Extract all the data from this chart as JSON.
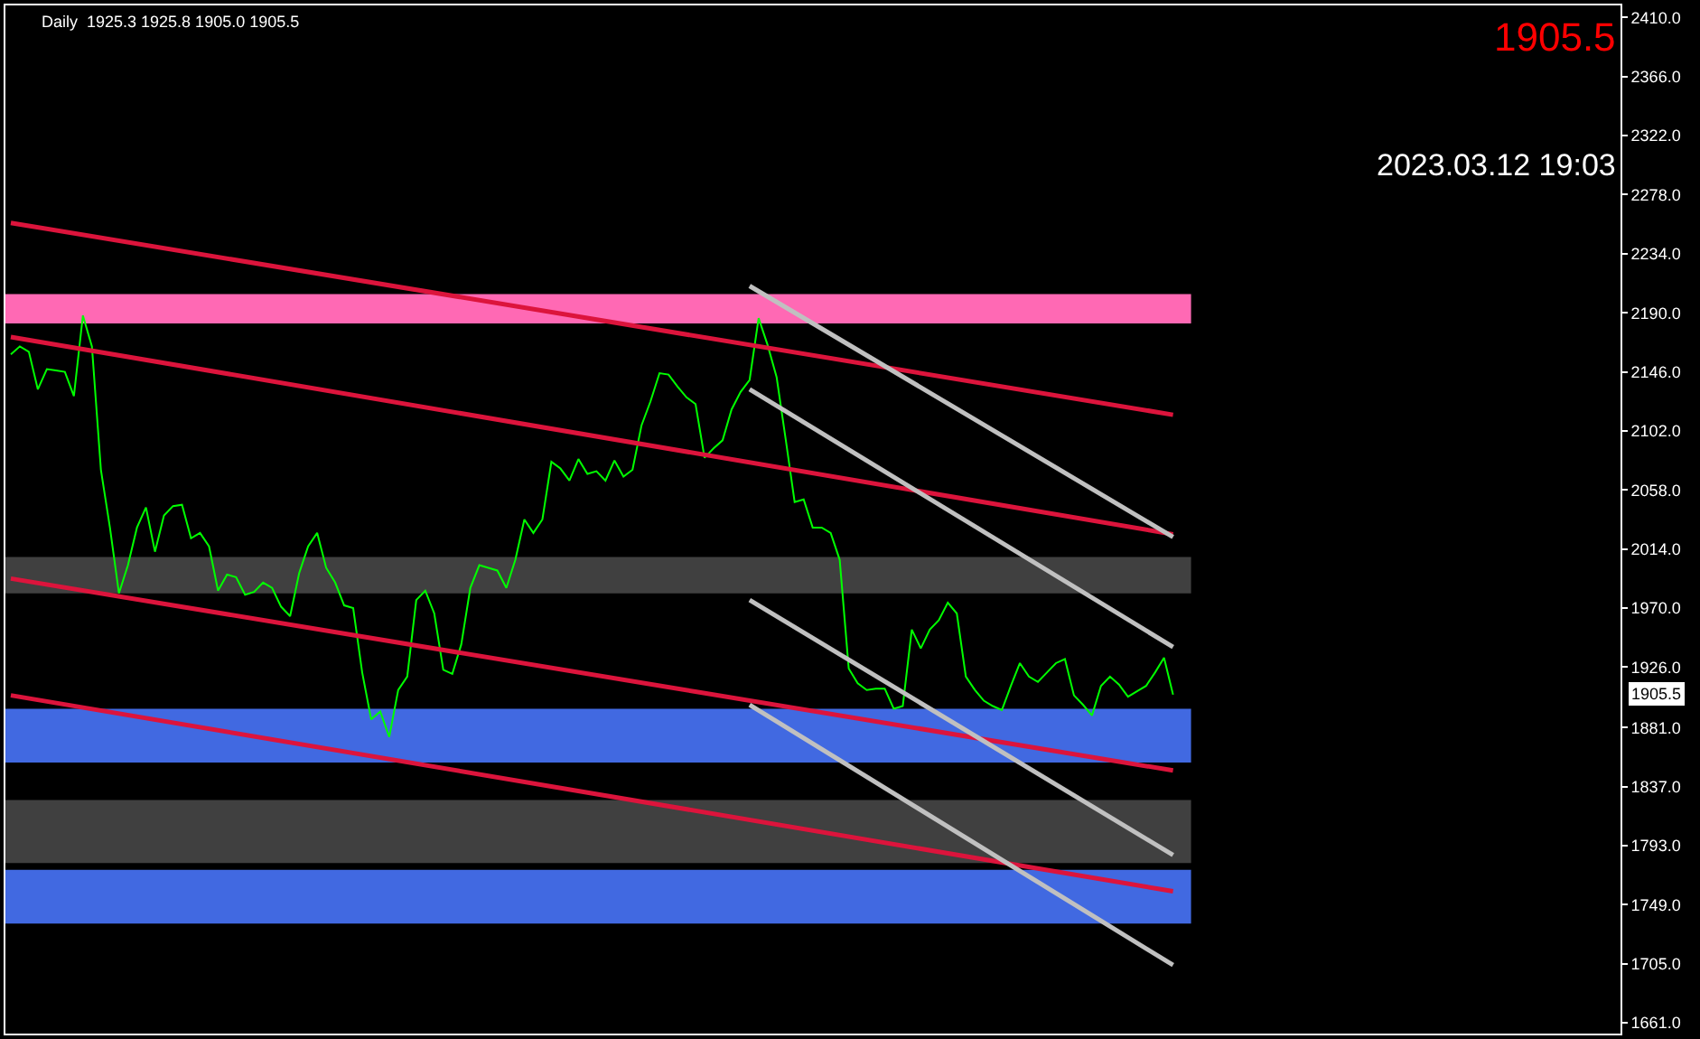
{
  "chart_data": {
    "type": "line",
    "title": "Daily  1925.3 1925.8 1905.0 1905.5",
    "annotations": [
      "1905.5",
      "2023.03.12 19:03",
      "1905.5"
    ],
    "categories": [
      null,
      null,
      null,
      null,
      null,
      null,
      null,
      null,
      null,
      null,
      null,
      null,
      null,
      null,
      null,
      null,
      null,
      null,
      null,
      null,
      null,
      null,
      null,
      null,
      null,
      null,
      null,
      null,
      null,
      null,
      null,
      null,
      null,
      null,
      null,
      null,
      null,
      null,
      null,
      null,
      null,
      null,
      null,
      null,
      null,
      null,
      null,
      null,
      null,
      null,
      null,
      null,
      null,
      null,
      null,
      null,
      null,
      null,
      null,
      null,
      null,
      null,
      null,
      null,
      null,
      null,
      null,
      null,
      null,
      null,
      null,
      null,
      null,
      null,
      null,
      null,
      null,
      null,
      null,
      null,
      null,
      null,
      null,
      null,
      null,
      null,
      null,
      null,
      null,
      null,
      null,
      null,
      null,
      null,
      null,
      null,
      null,
      null,
      null,
      null,
      null,
      null,
      null,
      null,
      null,
      null,
      null,
      null,
      null,
      null,
      null,
      null,
      null,
      null,
      null,
      null,
      null,
      null,
      null,
      null,
      null,
      null,
      null,
      null,
      null,
      null,
      null,
      null,
      null,
      null
    ],
    "ylim": [
      1653,
      2419
    ],
    "tick_labels": "y",
    "grid": false,
    "marker": "none",
    "line_style": "solid",
    "yticks": [
      {
        "value": 1661,
        "label": "1661.0"
      },
      {
        "value": 1705,
        "label": "1705.0"
      },
      {
        "value": 1749,
        "label": "1749.0"
      },
      {
        "value": 1793,
        "label": "1793.0"
      },
      {
        "value": 1837,
        "label": "1837.0"
      },
      {
        "value": 1881,
        "label": "1881.0"
      },
      {
        "value": 1926,
        "label": "1926.0"
      },
      {
        "value": 1970,
        "label": "1970.0"
      },
      {
        "value": 2014,
        "label": "2014.0"
      },
      {
        "value": 2058,
        "label": "2058.0"
      },
      {
        "value": 2102,
        "label": "2102.0"
      },
      {
        "value": 2146,
        "label": "2146.0"
      },
      {
        "value": 2190,
        "label": "2190.0"
      },
      {
        "value": 2234,
        "label": "2234.0"
      },
      {
        "value": 2278,
        "label": "2278.0"
      },
      {
        "value": 2322,
        "label": "2322.0"
      },
      {
        "value": 2366,
        "label": "2366.0"
      },
      {
        "value": 2410,
        "label": "2410.0"
      }
    ],
    "bands": [
      {
        "axis": "y",
        "from": 2182,
        "to": 2204,
        "color": "#ff69b4"
      },
      {
        "axis": "y",
        "from": 1981,
        "to": 2008,
        "color": "#404040"
      },
      {
        "axis": "y",
        "from": 1855,
        "to": 1895,
        "color": "#4169e1"
      },
      {
        "axis": "y",
        "from": 1780,
        "to": 1827,
        "color": "#404040"
      },
      {
        "axis": "y",
        "from": 1735,
        "to": 1775,
        "color": "#4169e1"
      }
    ],
    "series": [
      {
        "color": "#00ff00",
        "values": [
          2159,
          2165,
          2161,
          2133,
          2148,
          2147,
          2146,
          2128,
          2188,
          2165,
          2073,
          2030,
          1981,
          2002,
          2030,
          2045,
          2012,
          2039,
          2046,
          2047,
          2022,
          2026,
          2016,
          1983,
          1995,
          1993,
          1980,
          1982,
          1989,
          1985,
          1971,
          1964,
          1996,
          2016,
          2026,
          2000,
          1989,
          1972,
          1970,
          1922,
          1887,
          1893,
          1874,
          1909,
          1919,
          1976,
          1983,
          1966,
          1924,
          1921,
          1943,
          1985,
          2002,
          2000,
          1998,
          1985,
          2006,
          2036,
          2026,
          2036,
          2079,
          2074,
          2065,
          2081,
          2070,
          2072,
          2065,
          2080,
          2068,
          2073,
          2106,
          2124,
          2145,
          2144,
          2135,
          2127,
          2122,
          2082,
          2089,
          2095,
          2118,
          2131,
          2140,
          2186,
          2166,
          2142,
          2096,
          2049,
          2051,
          2030,
          2030,
          2026,
          2006,
          1925,
          1914,
          1909,
          1910,
          1910,
          1895,
          1897,
          1954,
          1940,
          1954,
          1961,
          1974,
          1966,
          1919,
          1909,
          1901,
          1897,
          1894,
          1912,
          1929,
          1919,
          1915,
          1922,
          1929,
          1932,
          1905,
          1898,
          1890,
          1912,
          1919,
          1913,
          1904,
          1908,
          1912,
          1922,
          1933,
          1905.5
        ]
      },
      {
        "type": "line",
        "color": "#dc143c",
        "values": [
          2257,
          null,
          null,
          null,
          null,
          null,
          null,
          null,
          null,
          null,
          null,
          null,
          null,
          null,
          null,
          null,
          null,
          null,
          null,
          null,
          null,
          null,
          null,
          null,
          null,
          null,
          null,
          null,
          null,
          null,
          null,
          null,
          null,
          null,
          null,
          null,
          null,
          null,
          null,
          null,
          null,
          null,
          null,
          null,
          null,
          null,
          null,
          null,
          null,
          null,
          null,
          null,
          null,
          null,
          null,
          null,
          null,
          null,
          null,
          null,
          null,
          null,
          null,
          null,
          null,
          null,
          null,
          null,
          null,
          null,
          null,
          null,
          null,
          null,
          null,
          null,
          null,
          null,
          null,
          null,
          null,
          null,
          null,
          null,
          null,
          null,
          null,
          null,
          null,
          null,
          null,
          null,
          null,
          null,
          null,
          null,
          null,
          null,
          null,
          null,
          null,
          null,
          null,
          null,
          null,
          null,
          null,
          null,
          null,
          null,
          null,
          null,
          null,
          null,
          null,
          null,
          null,
          null,
          null,
          null,
          null,
          null,
          null,
          null,
          null,
          null,
          null,
          null,
          null,
          2114
        ]
      },
      {
        "type": "line",
        "color": "#dc143c",
        "values": [
          2172,
          null,
          null,
          null,
          null,
          null,
          null,
          null,
          null,
          null,
          null,
          null,
          null,
          null,
          null,
          null,
          null,
          null,
          null,
          null,
          null,
          null,
          null,
          null,
          null,
          null,
          null,
          null,
          null,
          null,
          null,
          null,
          null,
          null,
          null,
          null,
          null,
          null,
          null,
          null,
          null,
          null,
          null,
          null,
          null,
          null,
          null,
          null,
          null,
          null,
          null,
          null,
          null,
          null,
          null,
          null,
          null,
          null,
          null,
          null,
          null,
          null,
          null,
          null,
          null,
          null,
          null,
          null,
          null,
          null,
          null,
          null,
          null,
          null,
          null,
          null,
          null,
          null,
          null,
          null,
          null,
          null,
          null,
          null,
          null,
          null,
          null,
          null,
          null,
          null,
          null,
          null,
          null,
          null,
          null,
          null,
          null,
          null,
          null,
          null,
          null,
          null,
          null,
          null,
          null,
          null,
          null,
          null,
          null,
          null,
          null,
          null,
          null,
          null,
          null,
          null,
          null,
          null,
          null,
          null,
          null,
          null,
          null,
          null,
          null,
          null,
          null,
          null,
          null,
          2025
        ]
      },
      {
        "type": "line",
        "color": "#dc143c",
        "values": [
          1992,
          null,
          null,
          null,
          null,
          null,
          null,
          null,
          null,
          null,
          null,
          null,
          null,
          null,
          null,
          null,
          null,
          null,
          null,
          null,
          null,
          null,
          null,
          null,
          null,
          null,
          null,
          null,
          null,
          null,
          null,
          null,
          null,
          null,
          null,
          null,
          null,
          null,
          null,
          null,
          null,
          null,
          null,
          null,
          null,
          null,
          null,
          null,
          null,
          null,
          null,
          null,
          null,
          null,
          null,
          null,
          null,
          null,
          null,
          null,
          null,
          null,
          null,
          null,
          null,
          null,
          null,
          null,
          null,
          null,
          null,
          null,
          null,
          null,
          null,
          null,
          null,
          null,
          null,
          null,
          null,
          null,
          null,
          null,
          null,
          null,
          null,
          null,
          null,
          null,
          null,
          null,
          null,
          null,
          null,
          null,
          null,
          null,
          null,
          null,
          null,
          null,
          null,
          null,
          null,
          null,
          null,
          null,
          null,
          null,
          null,
          null,
          null,
          null,
          null,
          null,
          null,
          null,
          null,
          null,
          null,
          null,
          null,
          null,
          null,
          null,
          null,
          null,
          null,
          1849
        ]
      },
      {
        "type": "line",
        "color": "#dc143c",
        "values": [
          1905,
          null,
          null,
          null,
          null,
          null,
          null,
          null,
          null,
          null,
          null,
          null,
          null,
          null,
          null,
          null,
          null,
          null,
          null,
          null,
          null,
          null,
          null,
          null,
          null,
          null,
          null,
          null,
          null,
          null,
          null,
          null,
          null,
          null,
          null,
          null,
          null,
          null,
          null,
          null,
          null,
          null,
          null,
          null,
          null,
          null,
          null,
          null,
          null,
          null,
          null,
          null,
          null,
          null,
          null,
          null,
          null,
          null,
          null,
          null,
          null,
          null,
          null,
          null,
          null,
          null,
          null,
          null,
          null,
          null,
          null,
          null,
          null,
          null,
          null,
          null,
          null,
          null,
          null,
          null,
          null,
          null,
          null,
          null,
          null,
          null,
          null,
          null,
          null,
          null,
          null,
          null,
          null,
          null,
          null,
          null,
          null,
          null,
          null,
          null,
          null,
          null,
          null,
          null,
          null,
          null,
          null,
          null,
          null,
          null,
          null,
          null,
          null,
          null,
          null,
          null,
          null,
          null,
          null,
          null,
          null,
          null,
          null,
          null,
          null,
          null,
          null,
          null,
          null,
          1759
        ]
      },
      {
        "type": "line",
        "color": "#c0c0c0",
        "values": [
          null,
          null,
          null,
          null,
          null,
          null,
          null,
          null,
          null,
          null,
          null,
          null,
          null,
          null,
          null,
          null,
          null,
          null,
          null,
          null,
          null,
          null,
          null,
          null,
          null,
          null,
          null,
          null,
          null,
          null,
          null,
          null,
          null,
          null,
          null,
          null,
          null,
          null,
          null,
          null,
          null,
          null,
          null,
          null,
          null,
          null,
          null,
          null,
          null,
          null,
          null,
          null,
          null,
          null,
          null,
          null,
          null,
          null,
          null,
          null,
          null,
          null,
          null,
          null,
          null,
          null,
          null,
          null,
          null,
          null,
          null,
          null,
          null,
          null,
          null,
          null,
          null,
          null,
          null,
          null,
          null,
          null,
          2210,
          null,
          null,
          null,
          null,
          null,
          null,
          null,
          null,
          null,
          null,
          null,
          null,
          null,
          null,
          null,
          null,
          null,
          null,
          null,
          null,
          null,
          null,
          null,
          null,
          null,
          null,
          null,
          null,
          null,
          null,
          null,
          null,
          null,
          null,
          null,
          null,
          null,
          null,
          null,
          null,
          null,
          null,
          null,
          null,
          null,
          null,
          2023
        ]
      },
      {
        "type": "line",
        "color": "#c0c0c0",
        "values": [
          null,
          null,
          null,
          null,
          null,
          null,
          null,
          null,
          null,
          null,
          null,
          null,
          null,
          null,
          null,
          null,
          null,
          null,
          null,
          null,
          null,
          null,
          null,
          null,
          null,
          null,
          null,
          null,
          null,
          null,
          null,
          null,
          null,
          null,
          null,
          null,
          null,
          null,
          null,
          null,
          null,
          null,
          null,
          null,
          null,
          null,
          null,
          null,
          null,
          null,
          null,
          null,
          null,
          null,
          null,
          null,
          null,
          null,
          null,
          null,
          null,
          null,
          null,
          null,
          null,
          null,
          null,
          null,
          null,
          null,
          null,
          null,
          null,
          null,
          null,
          null,
          null,
          null,
          null,
          null,
          null,
          null,
          2133,
          null,
          null,
          null,
          null,
          null,
          null,
          null,
          null,
          null,
          null,
          null,
          null,
          null,
          null,
          null,
          null,
          null,
          null,
          null,
          null,
          null,
          null,
          null,
          null,
          null,
          null,
          null,
          null,
          null,
          null,
          null,
          null,
          null,
          null,
          null,
          null,
          null,
          null,
          null,
          null,
          null,
          null,
          null,
          null,
          null,
          null,
          1941
        ]
      },
      {
        "type": "line",
        "color": "#c0c0c0",
        "values": [
          null,
          null,
          null,
          null,
          null,
          null,
          null,
          null,
          null,
          null,
          null,
          null,
          null,
          null,
          null,
          null,
          null,
          null,
          null,
          null,
          null,
          null,
          null,
          null,
          null,
          null,
          null,
          null,
          null,
          null,
          null,
          null,
          null,
          null,
          null,
          null,
          null,
          null,
          null,
          null,
          null,
          null,
          null,
          null,
          null,
          null,
          null,
          null,
          null,
          null,
          null,
          null,
          null,
          null,
          null,
          null,
          null,
          null,
          null,
          null,
          null,
          null,
          null,
          null,
          null,
          null,
          null,
          null,
          null,
          null,
          null,
          null,
          null,
          null,
          null,
          null,
          null,
          null,
          null,
          null,
          null,
          null,
          1976,
          null,
          null,
          null,
          null,
          null,
          null,
          null,
          null,
          null,
          null,
          null,
          null,
          null,
          null,
          null,
          null,
          null,
          null,
          null,
          null,
          null,
          null,
          null,
          null,
          null,
          null,
          null,
          null,
          null,
          null,
          null,
          null,
          null,
          null,
          null,
          null,
          null,
          null,
          null,
          null,
          null,
          null,
          null,
          null,
          null,
          null,
          1786
        ]
      },
      {
        "type": "line",
        "color": "#c0c0c0",
        "values": [
          null,
          null,
          null,
          null,
          null,
          null,
          null,
          null,
          null,
          null,
          null,
          null,
          null,
          null,
          null,
          null,
          null,
          null,
          null,
          null,
          null,
          null,
          null,
          null,
          null,
          null,
          null,
          null,
          null,
          null,
          null,
          null,
          null,
          null,
          null,
          null,
          null,
          null,
          null,
          null,
          null,
          null,
          null,
          null,
          null,
          null,
          null,
          null,
          null,
          null,
          null,
          null,
          null,
          null,
          null,
          null,
          null,
          null,
          null,
          null,
          null,
          null,
          null,
          null,
          null,
          null,
          null,
          null,
          null,
          null,
          null,
          null,
          null,
          null,
          null,
          null,
          null,
          null,
          null,
          null,
          null,
          null,
          1898,
          null,
          null,
          null,
          null,
          null,
          null,
          null,
          null,
          null,
          null,
          null,
          null,
          null,
          null,
          null,
          null,
          null,
          null,
          null,
          null,
          null,
          null,
          null,
          null,
          null,
          null,
          null,
          null,
          null,
          null,
          null,
          null,
          null,
          null,
          null,
          null,
          null,
          null,
          null,
          null,
          null,
          null,
          null,
          null,
          null,
          null,
          1704
        ]
      }
    ]
  }
}
